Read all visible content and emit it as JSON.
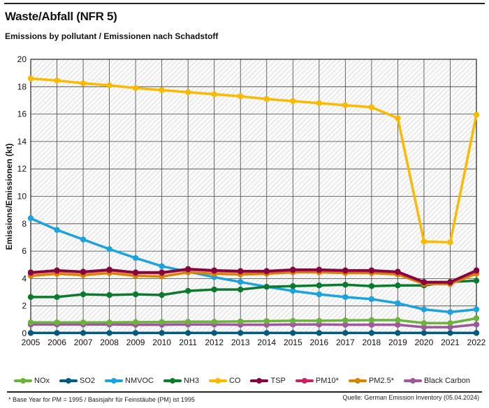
{
  "header": {
    "title": "Waste/Abfall (NFR 5)",
    "subtitle": "Emissions by pollutant / Emissionen nach Schadstoff"
  },
  "footer": {
    "note": "* Base Year for PM = 1995 / Basisjahr für Feinstäube (PM) ist 1995",
    "source": "Quelle: German Emission Inventory (05.04.2024)"
  },
  "chart_data": {
    "type": "line",
    "title": "",
    "xlabel": "",
    "ylabel": "Emissions/Emissionen (kt)",
    "ylim": [
      0,
      20
    ],
    "yticks": [
      0,
      2,
      4,
      6,
      8,
      10,
      12,
      14,
      16,
      18,
      20
    ],
    "grid": true,
    "legend": "bottom",
    "x": [
      2005,
      2006,
      2007,
      2008,
      2009,
      2010,
      2011,
      2012,
      2013,
      2014,
      2015,
      2016,
      2017,
      2018,
      2019,
      2020,
      2021,
      2022
    ],
    "series": [
      {
        "name": "NOx",
        "color": "#6ab43e",
        "values": [
          0.8,
          0.8,
          0.8,
          0.8,
          0.82,
          0.83,
          0.85,
          0.85,
          0.87,
          0.9,
          0.92,
          0.92,
          0.95,
          0.97,
          0.97,
          0.75,
          0.75,
          1.1
        ]
      },
      {
        "name": "SO2",
        "color": "#005b7f",
        "values": [
          0.03,
          0.03,
          0.03,
          0.03,
          0.03,
          0.03,
          0.03,
          0.03,
          0.03,
          0.03,
          0.03,
          0.03,
          0.03,
          0.03,
          0.03,
          0.03,
          0.03,
          0.03
        ]
      },
      {
        "name": "NMVOC",
        "color": "#1aa3dc",
        "values": [
          8.4,
          7.55,
          6.85,
          6.15,
          5.5,
          4.9,
          4.5,
          4.1,
          3.75,
          3.4,
          3.1,
          2.85,
          2.65,
          2.5,
          2.2,
          1.75,
          1.55,
          1.75
        ]
      },
      {
        "name": "NH3",
        "color": "#0b7a2e",
        "values": [
          2.65,
          2.65,
          2.85,
          2.8,
          2.85,
          2.8,
          3.1,
          3.2,
          3.2,
          3.4,
          3.45,
          3.5,
          3.55,
          3.45,
          3.5,
          3.5,
          3.75,
          3.85
        ]
      },
      {
        "name": "CO",
        "color": "#fbb900",
        "values": [
          18.6,
          18.45,
          18.25,
          18.1,
          17.9,
          17.75,
          17.6,
          17.45,
          17.3,
          17.1,
          16.95,
          16.8,
          16.65,
          16.5,
          15.7,
          6.7,
          6.65,
          15.95
        ]
      },
      {
        "name": "TSP",
        "color": "#83053c",
        "values": [
          4.45,
          4.6,
          4.5,
          4.65,
          4.45,
          4.45,
          4.7,
          4.6,
          4.55,
          4.55,
          4.65,
          4.65,
          4.6,
          4.6,
          4.5,
          3.75,
          3.75,
          4.6
        ]
      },
      {
        "name": "PM10*",
        "color": "#ce1f5e",
        "values": [
          4.4,
          4.55,
          4.45,
          4.6,
          4.4,
          4.4,
          4.65,
          4.55,
          4.5,
          4.5,
          4.6,
          4.6,
          4.55,
          4.55,
          4.45,
          3.7,
          3.7,
          4.55
        ]
      },
      {
        "name": "PM2.5*",
        "color": "#d78400",
        "values": [
          4.2,
          4.35,
          4.25,
          4.4,
          4.2,
          4.15,
          4.45,
          4.35,
          4.3,
          4.35,
          4.45,
          4.45,
          4.4,
          4.4,
          4.3,
          3.6,
          3.6,
          4.35
        ]
      },
      {
        "name": "Black Carbon",
        "color": "#9d579a",
        "values": [
          0.65,
          0.65,
          0.65,
          0.65,
          0.63,
          0.63,
          0.65,
          0.65,
          0.63,
          0.63,
          0.65,
          0.65,
          0.63,
          0.63,
          0.63,
          0.45,
          0.45,
          0.65
        ]
      }
    ]
  }
}
